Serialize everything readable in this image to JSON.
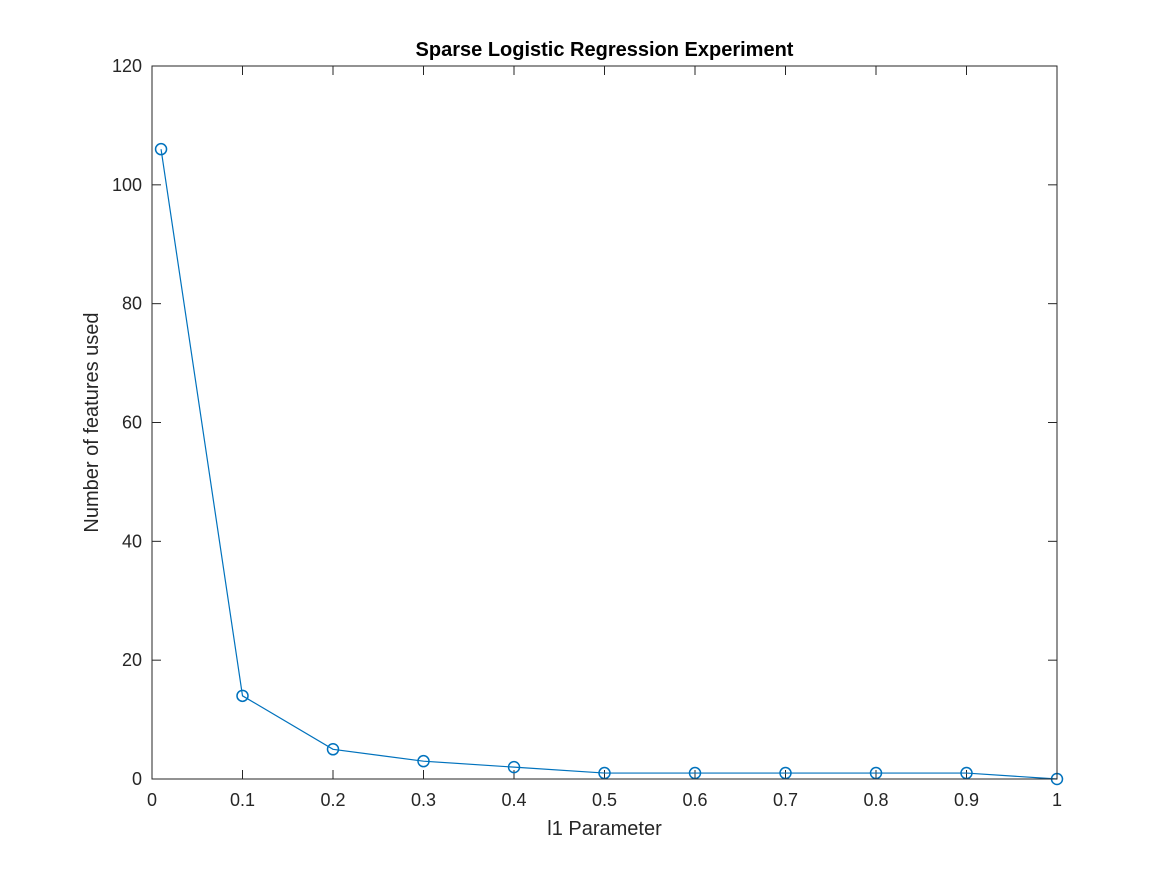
{
  "chart_data": {
    "type": "line",
    "title": "Sparse Logistic Regression Experiment",
    "xlabel": "l1 Parameter",
    "ylabel": "Number of features used",
    "xlim": [
      0,
      1
    ],
    "ylim": [
      0,
      120
    ],
    "xticks": [
      0,
      0.1,
      0.2,
      0.3,
      0.4,
      0.5,
      0.6,
      0.7,
      0.8,
      0.9,
      1
    ],
    "xtick_labels": [
      "0",
      "0.1",
      "0.2",
      "0.3",
      "0.4",
      "0.5",
      "0.6",
      "0.7",
      "0.8",
      "0.9",
      "1"
    ],
    "yticks": [
      0,
      20,
      40,
      60,
      80,
      100,
      120
    ],
    "ytick_labels": [
      "0",
      "20",
      "40",
      "60",
      "80",
      "100",
      "120"
    ],
    "grid": false,
    "marker": "circle",
    "series_color": "#0072BD",
    "series": [
      {
        "x": [
          0.01,
          0.1,
          0.2,
          0.3,
          0.4,
          0.5,
          0.6,
          0.7,
          0.8,
          0.9,
          1.0
        ],
        "y": [
          106,
          14,
          5,
          3,
          2,
          1,
          1,
          1,
          1,
          1,
          0
        ]
      }
    ]
  }
}
